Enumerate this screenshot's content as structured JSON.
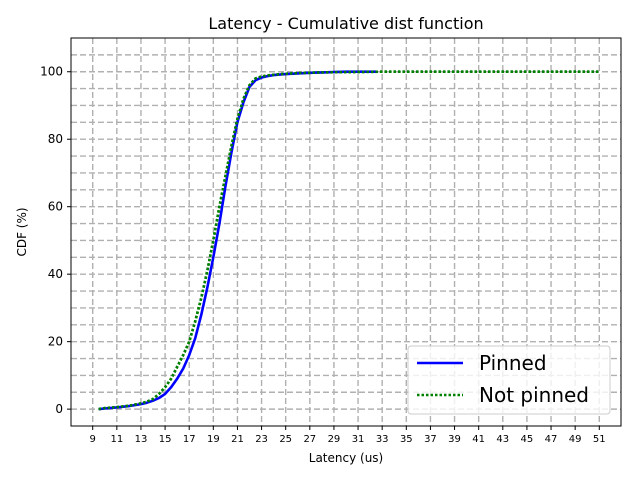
{
  "chart_data": {
    "type": "line",
    "title": "Latency - Cumulative dist function",
    "xlabel": "Latency (us)",
    "ylabel": "CDF (%)",
    "xlim": [
      7.2,
      52.8
    ],
    "ylim": [
      -5,
      110
    ],
    "xticks": [
      9,
      11,
      13,
      15,
      17,
      19,
      21,
      23,
      25,
      27,
      29,
      31,
      33,
      35,
      37,
      39,
      41,
      43,
      45,
      47,
      49,
      51
    ],
    "yticks": [
      0,
      20,
      40,
      60,
      80,
      100
    ],
    "grid": true,
    "legend_position": "bottom-right",
    "series": [
      {
        "name": "Pinned",
        "color": "#0000ff",
        "style": "solid",
        "x": [
          9.5,
          10,
          11,
          12,
          13,
          13.5,
          14,
          14.5,
          15,
          15.5,
          16,
          16.5,
          17,
          17.5,
          18,
          18.5,
          19,
          19.5,
          20,
          20.5,
          21,
          21.5,
          22,
          22.5,
          23,
          23.5,
          24,
          25,
          26,
          27,
          28,
          30,
          32.5
        ],
        "y": [
          0,
          0.2,
          0.5,
          0.9,
          1.5,
          1.9,
          2.5,
          3.3,
          4.5,
          6.5,
          9,
          12,
          16,
          21,
          28,
          36,
          45,
          55,
          66,
          76,
          85,
          91,
          95.5,
          97.5,
          98.3,
          98.7,
          99,
          99.3,
          99.5,
          99.7,
          99.8,
          100,
          100
        ]
      },
      {
        "name": "Not pinned",
        "color": "#008000",
        "style": "dotted",
        "x": [
          9.5,
          10,
          11,
          12,
          13,
          13.5,
          14,
          14.5,
          15,
          15.5,
          16,
          16.5,
          17,
          17.5,
          18,
          18.5,
          19,
          19.5,
          20,
          20.5,
          21,
          21.5,
          22,
          22.5,
          23,
          23.5,
          24,
          25,
          26,
          27,
          28,
          30,
          33,
          40,
          51
        ],
        "y": [
          0,
          0.3,
          0.6,
          1,
          1.7,
          2.2,
          3,
          4.5,
          6.5,
          9,
          12.5,
          16,
          20,
          26,
          33,
          41,
          50,
          60,
          69,
          78,
          86,
          92,
          96,
          98,
          98.6,
          98.9,
          99.1,
          99.4,
          99.6,
          99.7,
          99.8,
          99.9,
          100,
          100,
          100
        ]
      }
    ]
  }
}
